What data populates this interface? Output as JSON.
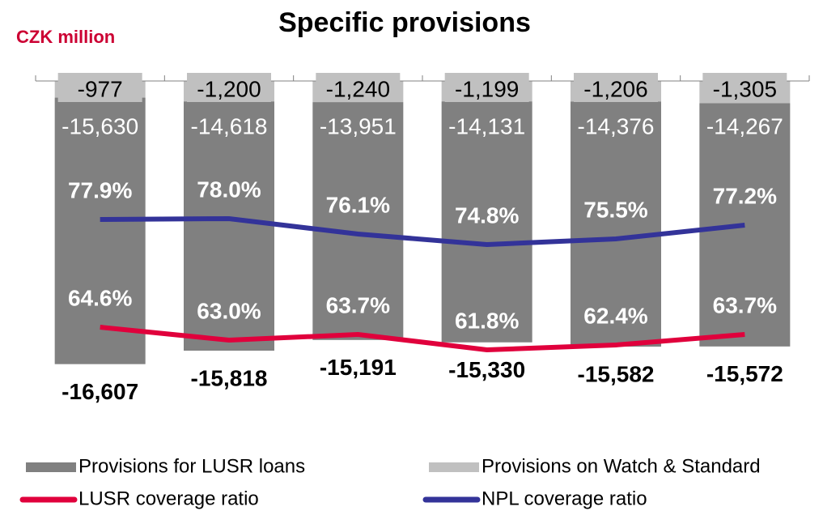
{
  "chart_data": {
    "type": "bar",
    "title": "Specific provisions",
    "subtitle": "CZK million",
    "stacked": true,
    "categories": [
      null,
      null,
      null,
      null,
      null,
      null
    ],
    "ylim": [
      -19000,
      0
    ],
    "y2lim": [
      55,
      95
    ],
    "series": [
      {
        "name": "Provisions for LUSR loans",
        "color": "#808080",
        "type": "bar",
        "values": [
          -15630,
          -14618,
          -13951,
          -14131,
          -14376,
          -14267
        ],
        "value_labels": [
          "-15,630",
          "-14,618",
          "-13,951",
          "-14,131",
          "-14,376",
          "-14,267"
        ]
      },
      {
        "name": "Provisions on Watch & Standard",
        "color": "#c0c0c0",
        "type": "bar",
        "values": [
          -977,
          -1200,
          -1240,
          -1199,
          -1206,
          -1305
        ],
        "value_labels": [
          "-977",
          "-1,200",
          "-1,240",
          "-1,199",
          "-1,206",
          "-1,305"
        ]
      },
      {
        "name": "LUSR coverage ratio",
        "color": "#e0003c",
        "type": "line",
        "axis": "y2",
        "values": [
          64.6,
          63.0,
          63.7,
          61.8,
          62.4,
          63.7
        ],
        "value_labels": [
          "64.6%",
          "63.0%",
          "63.7%",
          "61.8%",
          "62.4%",
          "63.7%"
        ]
      },
      {
        "name": "NPL coverage ratio",
        "color": "#333399",
        "type": "line",
        "axis": "y2",
        "values": [
          77.9,
          78.0,
          76.1,
          74.8,
          75.5,
          77.2
        ],
        "value_labels": [
          "77.9%",
          "78.0%",
          "76.1%",
          "74.8%",
          "75.5%",
          "77.2%"
        ]
      }
    ],
    "totals": [
      -16607,
      -15818,
      -15191,
      -15330,
      -15582,
      -15572
    ],
    "total_labels": [
      "-16,607",
      "-15,818",
      "-15,191",
      "-15,330",
      "-15,582",
      "-15,572"
    ]
  }
}
